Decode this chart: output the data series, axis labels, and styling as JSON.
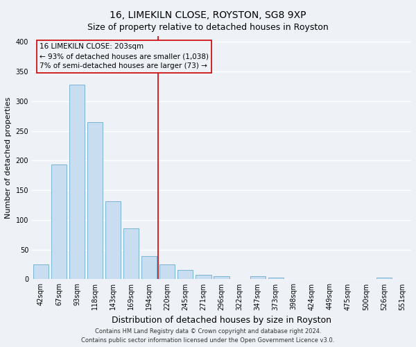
{
  "title": "16, LIMEKILN CLOSE, ROYSTON, SG8 9XP",
  "subtitle": "Size of property relative to detached houses in Royston",
  "xlabel": "Distribution of detached houses by size in Royston",
  "ylabel": "Number of detached properties",
  "bar_labels": [
    "42sqm",
    "67sqm",
    "93sqm",
    "118sqm",
    "143sqm",
    "169sqm",
    "194sqm",
    "220sqm",
    "245sqm",
    "271sqm",
    "296sqm",
    "322sqm",
    "347sqm",
    "373sqm",
    "398sqm",
    "424sqm",
    "449sqm",
    "475sqm",
    "500sqm",
    "526sqm",
    "551sqm"
  ],
  "bar_values": [
    25,
    193,
    328,
    265,
    131,
    86,
    39,
    25,
    16,
    8,
    5,
    0,
    5,
    3,
    0,
    0,
    0,
    0,
    0,
    3,
    0
  ],
  "bar_color": "#c8ddef",
  "bar_edgecolor": "#7ab3d3",
  "ylim": [
    0,
    410
  ],
  "yticks": [
    0,
    50,
    100,
    150,
    200,
    250,
    300,
    350,
    400
  ],
  "vline_index": 6.5,
  "vline_color": "#cc0000",
  "annotation_title": "16 LIMEKILN CLOSE: 203sqm",
  "annotation_line1": "← 93% of detached houses are smaller (1,038)",
  "annotation_line2": "7% of semi-detached houses are larger (73) →",
  "annotation_box_edgecolor": "#cc0000",
  "footer_line1": "Contains HM Land Registry data © Crown copyright and database right 2024.",
  "footer_line2": "Contains public sector information licensed under the Open Government Licence v3.0.",
  "bg_color": "#eef2f7",
  "grid_color": "#ffffff",
  "title_fontsize": 10,
  "subtitle_fontsize": 9,
  "axis_label_fontsize": 8,
  "tick_fontsize": 7,
  "footer_fontsize": 6,
  "annot_fontsize": 7.5
}
